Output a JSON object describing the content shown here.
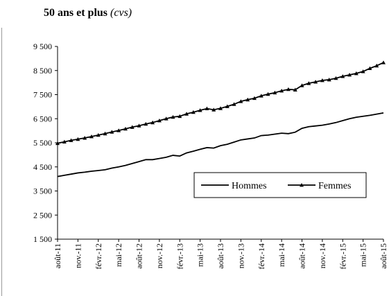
{
  "chart_data": {
    "type": "line",
    "title": "50 ans et plus",
    "subtitle": "(cvs)",
    "categories": [
      "août-11",
      null,
      null,
      "nov.-11",
      null,
      null,
      "févr.-12",
      null,
      null,
      "mai-12",
      null,
      null,
      "août-12",
      null,
      null,
      "nov.-12",
      null,
      null,
      "févr.-13",
      null,
      null,
      "mai-13",
      null,
      null,
      "août-13",
      null,
      null,
      "nov.-13",
      null,
      null,
      "févr.-14",
      null,
      null,
      "mai-14",
      null,
      null,
      "août-14",
      null,
      null,
      "nov.-14",
      null,
      null,
      "févr.-15",
      null,
      null,
      "mai-15",
      null,
      null,
      "août-15"
    ],
    "series": [
      {
        "name": "Hommes",
        "color": "#000000",
        "marker": "none",
        "values": [
          4100,
          4150,
          4200,
          4250,
          4280,
          4320,
          4350,
          4380,
          4450,
          4500,
          4560,
          4640,
          4720,
          4800,
          4800,
          4850,
          4900,
          4980,
          4950,
          5080,
          5150,
          5230,
          5300,
          5280,
          5380,
          5440,
          5530,
          5620,
          5660,
          5700,
          5800,
          5820,
          5860,
          5900,
          5880,
          5940,
          6100,
          6170,
          6200,
          6230,
          6280,
          6340,
          6420,
          6500,
          6560,
          6600,
          6640,
          6690,
          6740
        ]
      },
      {
        "name": "Femmes",
        "color": "#000000",
        "marker": "triangle",
        "values": [
          5480,
          5540,
          5600,
          5650,
          5700,
          5760,
          5820,
          5880,
          5950,
          6010,
          6080,
          6150,
          6210,
          6280,
          6340,
          6420,
          6500,
          6570,
          6600,
          6700,
          6770,
          6850,
          6920,
          6870,
          6930,
          7010,
          7100,
          7220,
          7290,
          7350,
          7450,
          7520,
          7580,
          7660,
          7720,
          7700,
          7880,
          7970,
          8030,
          8090,
          8120,
          8180,
          8260,
          8320,
          8380,
          8460,
          8590,
          8700,
          8830
        ]
      }
    ],
    "ylim": [
      1500,
      9500
    ],
    "yticks": [
      {
        "value": 1500,
        "label": "1 500"
      },
      {
        "value": 2500,
        "label": "2 500"
      },
      {
        "value": 3500,
        "label": "3 500"
      },
      {
        "value": 4500,
        "label": "4 500"
      },
      {
        "value": 5500,
        "label": "5 500"
      },
      {
        "value": 6500,
        "label": "6 500"
      },
      {
        "value": 7500,
        "label": "7 500"
      },
      {
        "value": 8500,
        "label": "8 500"
      },
      {
        "value": 9500,
        "label": "9 500"
      }
    ],
    "grid": false,
    "legend": "lower right"
  }
}
